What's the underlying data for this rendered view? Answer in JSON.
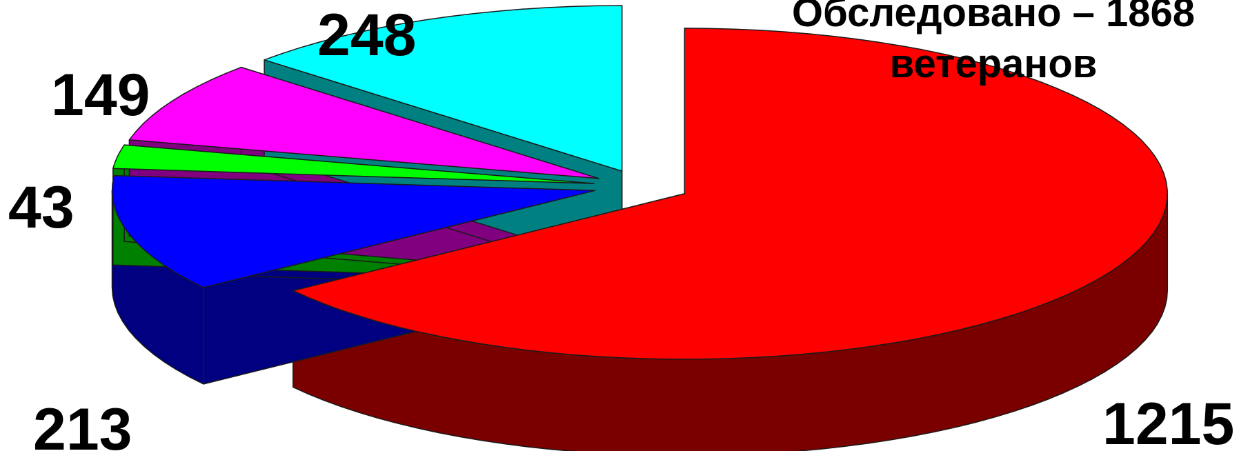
{
  "chart_data": {
    "type": "pie",
    "title_lines": [
      "Обследовано – 1868",
      "ветеранов"
    ],
    "slices": [
      {
        "value": 1215,
        "label": "1215",
        "color": "#FF0000",
        "side_color": "#7A0000"
      },
      {
        "value": 213,
        "label": "213",
        "color": "#0000FF",
        "side_color": "#000080"
      },
      {
        "value": 43,
        "label": "43",
        "color": "#00FF00",
        "side_color": "#008000"
      },
      {
        "value": 149,
        "label": "149",
        "color": "#FF00FF",
        "side_color": "#800080"
      },
      {
        "value": 248,
        "label": "248",
        "color": "#00FFFF",
        "side_color": "#008080"
      }
    ],
    "total": 1868,
    "style": "3d-exploded",
    "legend": "none"
  }
}
